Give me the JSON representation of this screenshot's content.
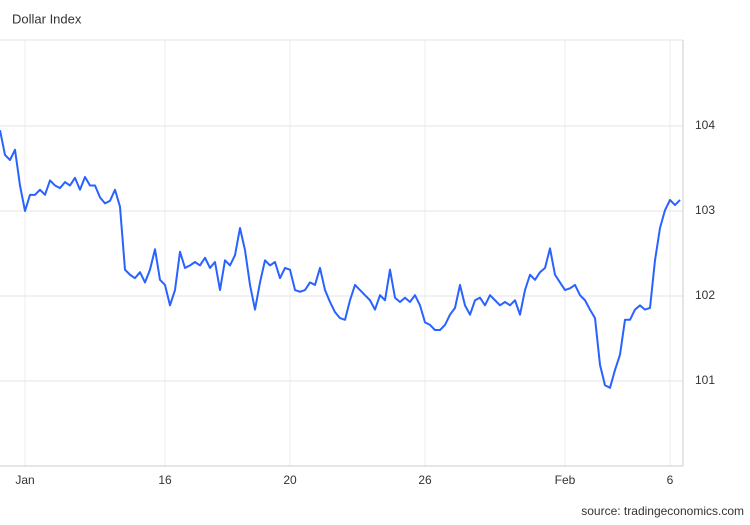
{
  "chart_data": {
    "type": "line",
    "title": "Dollar Index",
    "source": "source: tradingeconomics.com",
    "categories": [
      null,
      null,
      null,
      null,
      null,
      "Jan",
      null,
      null,
      null,
      null,
      null,
      null,
      null,
      null,
      null,
      null,
      null,
      null,
      null,
      null,
      null,
      null,
      null,
      null,
      null,
      null,
      null,
      null,
      null,
      null,
      null,
      null,
      null,
      "16",
      null,
      null,
      null,
      null,
      null,
      null,
      null,
      null,
      null,
      null,
      null,
      null,
      null,
      null,
      null,
      null,
      null,
      null,
      null,
      null,
      null,
      null,
      null,
      null,
      "20",
      null,
      null,
      null,
      null,
      null,
      null,
      null,
      null,
      null,
      null,
      null,
      null,
      null,
      null,
      null,
      null,
      null,
      null,
      null,
      null,
      null,
      null,
      null,
      null,
      null,
      null,
      "26",
      null,
      null,
      null,
      null,
      null,
      null,
      null,
      null,
      null,
      null,
      null,
      null,
      null,
      null,
      null,
      null,
      null,
      null,
      null,
      null,
      null,
      null,
      null,
      null,
      null,
      null,
      null,
      "Feb",
      null,
      null,
      null,
      null,
      null,
      null,
      null,
      null,
      null,
      null,
      null,
      null,
      null,
      null,
      null,
      null,
      null,
      null,
      null,
      null,
      "6",
      null,
      null
    ],
    "values": [
      103.95,
      103.66,
      103.6,
      103.72,
      103.3,
      103.0,
      103.19,
      103.19,
      103.25,
      103.19,
      103.36,
      103.3,
      103.27,
      103.34,
      103.3,
      103.39,
      103.25,
      103.4,
      103.3,
      103.3,
      103.16,
      103.09,
      103.12,
      103.25,
      103.05,
      102.31,
      102.25,
      102.21,
      102.28,
      102.16,
      102.31,
      102.55,
      102.19,
      102.13,
      101.89,
      102.07,
      102.52,
      102.33,
      102.36,
      102.4,
      102.36,
      102.45,
      102.33,
      102.4,
      102.07,
      102.42,
      102.36,
      102.48,
      102.8,
      102.54,
      102.13,
      101.84,
      102.16,
      102.42,
      102.36,
      102.4,
      102.21,
      102.33,
      102.31,
      102.07,
      102.05,
      102.07,
      102.16,
      102.13,
      102.33,
      102.07,
      101.93,
      101.81,
      101.74,
      101.72,
      101.95,
      102.13,
      102.07,
      102.01,
      101.95,
      101.84,
      102.01,
      101.95,
      102.31,
      101.98,
      101.93,
      101.98,
      101.93,
      102.01,
      101.89,
      101.69,
      101.66,
      101.6,
      101.6,
      101.66,
      101.78,
      101.86,
      102.13,
      101.89,
      101.78,
      101.95,
      101.98,
      101.89,
      102.01,
      101.95,
      101.89,
      101.93,
      101.89,
      101.95,
      101.78,
      102.07,
      102.25,
      102.19,
      102.28,
      102.33,
      102.56,
      102.25,
      102.16,
      102.07,
      102.09,
      102.13,
      102.01,
      101.95,
      101.84,
      101.74,
      101.19,
      100.95,
      100.92,
      101.13,
      101.31,
      101.72,
      101.72,
      101.84,
      101.89,
      101.84,
      101.86,
      102.42,
      102.8,
      103.01,
      103.13,
      103.07,
      103.13
    ],
    "color": "#2962ff",
    "ylim": [
      100,
      105
    ],
    "yticks": [
      101,
      102,
      103,
      104
    ],
    "grid": true
  }
}
